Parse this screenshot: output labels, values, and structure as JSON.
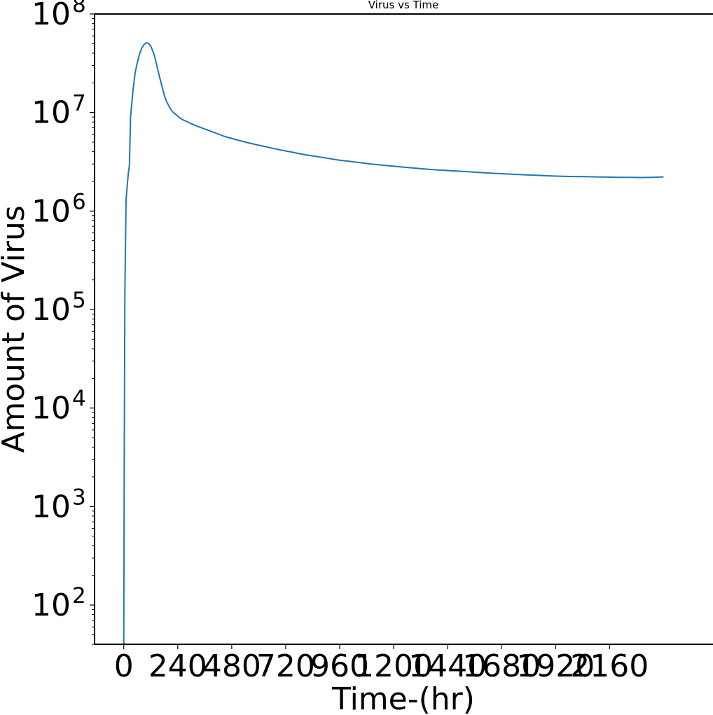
{
  "chart_data": {
    "type": "line",
    "title": "Virus vs Time",
    "xlabel": "Time-(hr)",
    "ylabel": "Amount of Virus",
    "yscale": "log",
    "xlim": [
      -130,
      2620
    ],
    "ylim": [
      40,
      100000000
    ],
    "grid": false,
    "legend": "none",
    "x_ticks": [
      0,
      240,
      480,
      720,
      960,
      1200,
      1440,
      1680,
      1920,
      2160
    ],
    "x_tick_labels": [
      "0",
      "240",
      "480",
      "720",
      "960",
      "1200",
      "1440",
      "1680",
      "1920",
      "2160"
    ],
    "y_ticks": [
      {
        "value": 100,
        "base": "10",
        "exp": "2"
      },
      {
        "value": 1000,
        "base": "10",
        "exp": "3"
      },
      {
        "value": 10000,
        "base": "10",
        "exp": "4"
      },
      {
        "value": 100000,
        "base": "10",
        "exp": "5"
      },
      {
        "value": 1000000,
        "base": "10",
        "exp": "6"
      },
      {
        "value": 10000000,
        "base": "10",
        "exp": "7"
      },
      {
        "value": 100000000,
        "base": "10",
        "exp": "8"
      }
    ],
    "series": [
      {
        "color": "#1f77b4",
        "x": [
          0,
          2,
          5,
          10,
          15,
          20,
          25,
          30,
          40,
          50,
          60,
          70,
          80,
          90,
          100,
          110,
          120,
          130,
          140,
          150,
          160,
          170,
          180,
          190,
          200,
          210,
          220,
          230,
          240,
          250,
          260,
          280,
          300,
          330,
          360,
          400,
          450,
          500,
          550,
          600,
          650,
          700,
          750,
          800,
          850,
          900,
          950,
          1000,
          1050,
          1100,
          1150,
          1200,
          1250,
          1300,
          1350,
          1400,
          1450,
          1500,
          1550,
          1600,
          1650,
          1700,
          1750,
          1800,
          1850,
          1900,
          1950,
          2000,
          2050,
          2100,
          2150,
          2200,
          2250,
          2300,
          2350,
          2400
        ],
        "y": [
          40,
          3000,
          150000,
          1300000,
          1800000,
          2400000,
          2900000,
          9000000,
          16000000,
          25000000,
          32000000,
          39000000,
          45000000,
          49000000,
          51000000,
          50500000,
          47000000,
          41500000,
          35000000,
          28000000,
          22500000,
          18500000,
          15000000,
          13000000,
          11700000,
          10700000,
          10000000,
          9600000,
          9200000,
          8800000,
          8500000,
          8100000,
          7700000,
          7200000,
          6800000,
          6300000,
          5700000,
          5300000,
          4950000,
          4650000,
          4400000,
          4150000,
          3950000,
          3750000,
          3600000,
          3450000,
          3300000,
          3200000,
          3100000,
          3000000,
          2920000,
          2850000,
          2780000,
          2720000,
          2660000,
          2610000,
          2570000,
          2530000,
          2490000,
          2450000,
          2410000,
          2380000,
          2350000,
          2320000,
          2300000,
          2270000,
          2250000,
          2240000,
          2230000,
          2220000,
          2210000,
          2200000,
          2200000,
          2190000,
          2200000,
          2220000
        ]
      }
    ]
  }
}
